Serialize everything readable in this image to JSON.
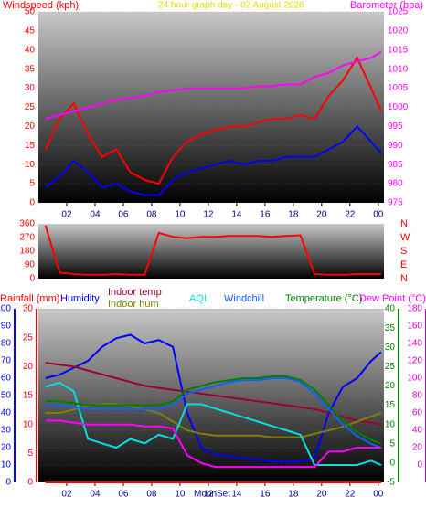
{
  "chart_data": [
    {
      "type": "line",
      "title": "24 hour graph day - 02 August 2026",
      "title_color": "#e0e000",
      "y_label": "Windspeed (kph)",
      "y_color": "#ff0000",
      "y2_label": "Barometer (hpa)",
      "y2_color": "#ff00ff",
      "x": [
        0.5,
        1.5,
        2.5,
        3.5,
        4.5,
        5.5,
        6.5,
        7.5,
        8.5,
        9.5,
        10.5,
        11.5,
        12.5,
        13.5,
        14.5,
        15.5,
        16.5,
        17.5,
        18.5,
        19.5,
        20.5,
        21.5,
        22.5,
        23.5,
        24.2
      ],
      "xlim": [
        0,
        24.4
      ],
      "xticks": [
        {
          "value": 2,
          "label": "02"
        },
        {
          "value": 4,
          "label": "04"
        },
        {
          "value": 6,
          "label": "06"
        },
        {
          "value": 8,
          "label": "08"
        },
        10,
        12,
        14,
        16,
        18,
        20,
        22,
        {
          "value": 24,
          "label": "00"
        }
      ],
      "ylim": [
        0,
        50
      ],
      "yticks": [
        0,
        5,
        10,
        15,
        20,
        25,
        30,
        35,
        40,
        45,
        50
      ],
      "y2lim": [
        975,
        1025
      ],
      "y2ticks": [
        975,
        980,
        985,
        990,
        995,
        1000,
        1005,
        1010,
        1015,
        1020,
        1025
      ],
      "grid": true,
      "series": [
        {
          "color": "#ff0000",
          "values": [
            14,
            22,
            26,
            18,
            12,
            14,
            8,
            6,
            5,
            12,
            16,
            18,
            19,
            20,
            20,
            21,
            22,
            22,
            23,
            22,
            28,
            32,
            38,
            30,
            24
          ]
        },
        {
          "color": "#0000ff",
          "values": [
            4,
            7,
            11,
            8,
            4,
            5,
            3,
            2,
            2,
            6,
            8,
            9,
            10,
            11,
            10,
            11,
            11,
            12,
            12,
            12,
            14,
            16,
            20,
            16,
            13
          ]
        },
        {
          "color": "#ff00ff",
          "axis": "y2",
          "values": [
            997,
            998,
            999,
            1000,
            1001,
            1002,
            1002.5,
            1003,
            1004,
            1004.5,
            1005,
            1005,
            1005,
            1005,
            1005,
            1005.5,
            1005.5,
            1006,
            1006,
            1008,
            1009,
            1011,
            1012,
            1013,
            1014.5
          ]
        }
      ]
    },
    {
      "type": "line",
      "y_color": "#ff0000",
      "x": [
        0.5,
        1.5,
        2.5,
        3.5,
        4.5,
        5.5,
        6.5,
        7.5,
        8.5,
        9.5,
        10.5,
        11.5,
        12.5,
        13.5,
        14.5,
        15.5,
        16.5,
        17.5,
        18.5,
        19.5,
        20.5,
        21.5,
        22.5,
        23.5,
        24.2
      ],
      "xlim": [
        0,
        24.4
      ],
      "ylim": [
        0,
        360
      ],
      "yticks": [
        0,
        90,
        180,
        270,
        360
      ],
      "direction_labels": [
        "N",
        "W",
        "S",
        "E",
        "N"
      ],
      "series": [
        {
          "color": "#ff0000",
          "values": [
            350,
            40,
            30,
            25,
            25,
            30,
            25,
            25,
            300,
            275,
            265,
            275,
            275,
            280,
            280,
            280,
            275,
            280,
            285,
            30,
            25,
            25,
            30,
            30,
            30
          ]
        }
      ]
    },
    {
      "type": "line",
      "x": [
        0.5,
        1.5,
        2.5,
        3.5,
        4.5,
        5.5,
        6.5,
        7.5,
        8.5,
        9.5,
        10.5,
        11.5,
        12.5,
        13.5,
        14.5,
        15.5,
        16.5,
        17.5,
        18.5,
        19.5,
        20.5,
        21.5,
        22.5,
        23.5,
        24.2
      ],
      "xlim": [
        0,
        24.4
      ],
      "xticks": [
        {
          "value": 2,
          "label": "02"
        },
        {
          "value": 4,
          "label": "04"
        },
        {
          "value": 6,
          "label": "06"
        },
        {
          "value": 8,
          "label": "08"
        },
        10,
        12,
        14,
        16,
        18,
        20,
        22,
        {
          "value": 24,
          "label": "00"
        }
      ],
      "annotation": "MoonSet",
      "grid": true,
      "axes": {
        "humidity": {
          "lim": [
            0,
            100
          ],
          "ticks": [
            0,
            10,
            20,
            30,
            40,
            50,
            60,
            70,
            80,
            90,
            100
          ],
          "color": "#0000ff"
        },
        "rainfall": {
          "lim": [
            0,
            30
          ],
          "ticks": [
            0,
            5,
            10,
            15,
            20,
            25,
            30
          ],
          "color": "#ff0000"
        },
        "temperature": {
          "lim": [
            -5,
            40
          ],
          "ticks": [
            -5,
            0,
            5,
            10,
            15,
            20,
            25,
            30,
            35,
            40
          ],
          "color": "#008000"
        },
        "aqi": {
          "lim": [
            -20,
            180
          ],
          "ticks": [
            0,
            20,
            40,
            60,
            80,
            100,
            120,
            140,
            160,
            180
          ],
          "color": "#cc00cc"
        }
      },
      "series": [
        {
          "name": "Rainfall (mm)",
          "color": "#ff0000",
          "axis": "rainfall",
          "values": [
            0,
            0,
            0,
            0,
            0,
            0,
            0,
            0,
            0,
            0,
            0,
            0,
            0,
            0,
            0,
            0,
            0,
            0,
            0,
            0,
            0,
            0,
            0,
            0,
            0
          ]
        },
        {
          "name": "Humidity",
          "color": "#0000ff",
          "axis": "humidity",
          "values": [
            60,
            62,
            66,
            70,
            78,
            83,
            85,
            80,
            82,
            78,
            40,
            20,
            16,
            15,
            14,
            13,
            12,
            12,
            12,
            14,
            40,
            55,
            60,
            70,
            75
          ]
        },
        {
          "name": "Indoor temp",
          "color": "#a00030",
          "axis": "temperature",
          "values": [
            26,
            25.5,
            25,
            24,
            23,
            22,
            21,
            20,
            19.5,
            19,
            18.5,
            18,
            17.5,
            17,
            16.5,
            16,
            15.5,
            15,
            14.5,
            14,
            13,
            12,
            11,
            10.5,
            10
          ]
        },
        {
          "name": "Indoor hum",
          "color": "#808000",
          "axis": "humidity",
          "values": [
            40,
            40,
            42,
            44,
            45,
            45,
            44,
            42,
            40,
            35,
            30,
            28,
            27,
            27,
            27,
            27,
            26,
            26,
            26,
            28,
            30,
            32,
            35,
            38,
            40
          ]
        },
        {
          "name": "AQI",
          "color": "#00e0e0",
          "axis": "aqi",
          "values": [
            90,
            95,
            85,
            30,
            25,
            20,
            30,
            25,
            35,
            30,
            70,
            70,
            65,
            60,
            55,
            50,
            45,
            40,
            35,
            0,
            0,
            0,
            0,
            5,
            0
          ]
        },
        {
          "name": "Windchill",
          "color": "#1060ff",
          "axis": "temperature",
          "values": [
            15,
            15,
            14.5,
            14,
            14,
            14,
            14,
            14,
            14,
            15,
            18,
            19,
            20,
            21,
            21.5,
            21.5,
            22,
            22,
            21,
            18,
            14,
            10,
            7,
            5,
            4
          ]
        },
        {
          "name": "Temperature (°C)",
          "color": "#008000",
          "axis": "temperature",
          "values": [
            16,
            16,
            15.5,
            15,
            15,
            15,
            15,
            15,
            15,
            16,
            19,
            20,
            21,
            21.5,
            22,
            22,
            22.5,
            22.5,
            21.5,
            19,
            15,
            11,
            8,
            6,
            5
          ]
        },
        {
          "name": "Dew Point (°C)",
          "color": "#ff00ff",
          "axis": "temperature",
          "values": [
            11,
            11,
            10.5,
            10,
            10,
            10,
            10,
            9.5,
            9.5,
            9,
            2,
            0,
            -1,
            -1,
            -1,
            -1,
            -1,
            -1,
            -1,
            -1,
            3,
            3,
            4,
            4,
            4
          ]
        }
      ]
    }
  ]
}
